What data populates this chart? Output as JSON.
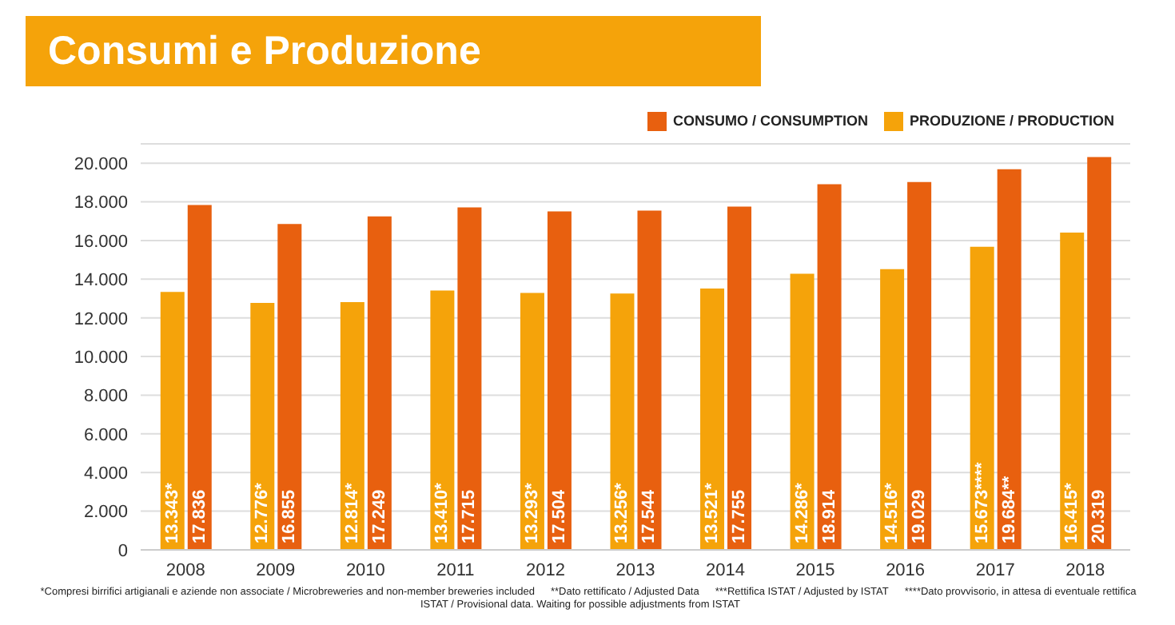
{
  "chart_data": {
    "type": "bar",
    "title": "Consumi e Produzione",
    "categories": [
      "2008",
      "2009",
      "2010",
      "2011",
      "2012",
      "2013",
      "2014",
      "2015",
      "2016",
      "2017",
      "2018"
    ],
    "series": [
      {
        "name": "PRODUZIONE / PRODUCTION",
        "color": "#f5a30a",
        "values": [
          13343,
          12776,
          12814,
          13410,
          13293,
          13256,
          13521,
          14286,
          14516,
          15673,
          16415
        ],
        "value_labels": [
          "13.343*",
          "12.776*",
          "12.814*",
          "13.410*",
          "13.293*",
          "13.256*",
          "13.521*",
          "14.286*",
          "14.516*",
          "15.673****",
          "16.415*"
        ]
      },
      {
        "name": "CONSUMO / CONSUMPTION",
        "color": "#e8600f",
        "values": [
          17836,
          16855,
          17249,
          17715,
          17504,
          17544,
          17755,
          18914,
          19029,
          19684,
          20319
        ],
        "value_labels": [
          "17.836",
          "16.855",
          "17.249",
          "17.715",
          "17.504",
          "17.544",
          "17.755",
          "18.914",
          "19.029",
          "19.684**",
          "20.319"
        ]
      }
    ],
    "ylim": [
      0,
      21000
    ],
    "yticks": [
      {
        "value": 0,
        "label": "0"
      },
      {
        "value": 2000,
        "label": "2.000"
      },
      {
        "value": 4000,
        "label": "4.000"
      },
      {
        "value": 6000,
        "label": "6.000"
      },
      {
        "value": 8000,
        "label": "8.000"
      },
      {
        "value": 10000,
        "label": "10.000"
      },
      {
        "value": 12000,
        "label": "12.000"
      },
      {
        "value": 14000,
        "label": "14.000"
      },
      {
        "value": 16000,
        "label": "16.000"
      },
      {
        "value": 18000,
        "label": "18.000"
      },
      {
        "value": 20000,
        "label": "20.000"
      }
    ],
    "grid": "y",
    "legend": "top right",
    "annotations": [
      "*Compresi birrifici artigianali e aziende non associate / Microbreweries and non-member breweries included",
      "**Dato rettificato / Adjusted Data",
      "***Rettifica ISTAT / Adjusted by ISTAT",
      "****Dato provvisorio, in attesa di eventuale rettifica ISTAT / Provisional data. Waiting for possible adjustments from ISTAT"
    ]
  }
}
